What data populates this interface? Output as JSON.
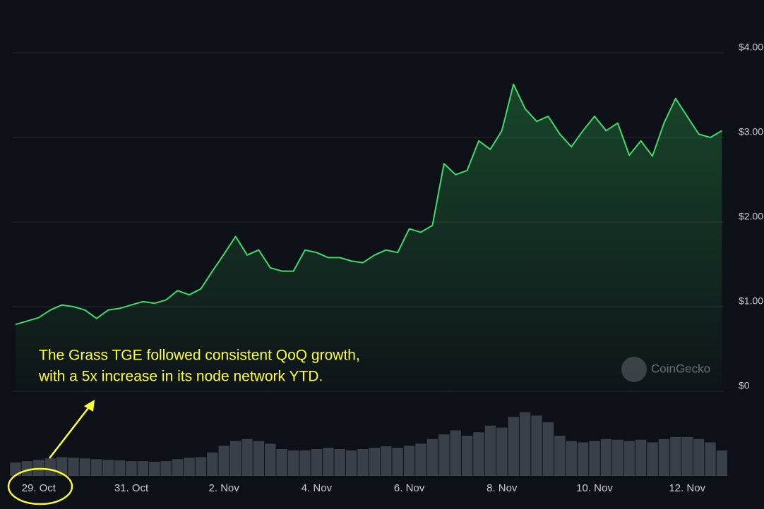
{
  "chart_data": {
    "type": "line",
    "categories": [
      null,
      null,
      "29. Oct",
      null,
      null,
      null,
      null,
      null,
      null,
      null,
      "31. Oct",
      null,
      null,
      null,
      null,
      null,
      null,
      null,
      "2. Nov",
      null,
      null,
      null,
      null,
      null,
      null,
      null,
      "4. Nov",
      null,
      null,
      null,
      null,
      null,
      null,
      null,
      "6. Nov",
      null,
      null,
      null,
      null,
      null,
      null,
      null,
      "8. Nov",
      null,
      null,
      null,
      null,
      null,
      null,
      null,
      "10. Nov",
      null,
      null,
      null,
      null,
      null,
      null,
      null,
      "12. Nov",
      null,
      null,
      null
    ],
    "series": [
      {
        "color": "#3ddc6a",
        "values": [
          0.79,
          0.83,
          0.87,
          0.96,
          1.02,
          1.0,
          0.96,
          0.86,
          0.96,
          0.98,
          1.02,
          1.06,
          1.04,
          1.08,
          1.19,
          1.14,
          1.21,
          1.42,
          1.62,
          1.83,
          1.61,
          1.67,
          1.46,
          1.42,
          1.42,
          1.67,
          1.64,
          1.58,
          1.58,
          1.54,
          1.52,
          1.61,
          1.67,
          1.64,
          1.92,
          1.88,
          1.96,
          2.69,
          2.56,
          2.61,
          2.96,
          2.86,
          3.08,
          3.63,
          3.34,
          3.19,
          3.25,
          3.04,
          2.89,
          3.08,
          3.25,
          3.08,
          3.17,
          2.79,
          2.96,
          2.78,
          3.17,
          3.46,
          3.25,
          3.04,
          3.0,
          3.08
        ]
      }
    ],
    "volume": {
      "color": "#3a4048",
      "values": [
        20,
        22,
        24,
        26,
        28,
        27,
        26,
        25,
        24,
        23,
        22,
        22,
        21,
        22,
        25,
        27,
        28,
        35,
        45,
        52,
        55,
        52,
        48,
        40,
        38,
        38,
        40,
        42,
        40,
        38,
        40,
        42,
        44,
        42,
        45,
        48,
        55,
        62,
        68,
        60,
        65,
        75,
        72,
        88,
        95,
        90,
        80,
        60,
        52,
        50,
        52,
        55,
        54,
        52,
        54,
        50,
        55,
        58,
        58,
        55,
        50,
        38
      ]
    },
    "ylim": [
      0,
      4
    ],
    "yticks": [
      {
        "value": 0,
        "label": "$0"
      },
      {
        "value": 1,
        "label": "$1.00"
      },
      {
        "value": 2,
        "label": "$2.00"
      },
      {
        "value": 3,
        "label": "$3.00"
      },
      {
        "value": 4,
        "label": "$4.00"
      }
    ],
    "grid": true,
    "annotation": [
      "The Grass TGE followed consistent QoQ growth,",
      "with a 5x increase in its node network YTD."
    ],
    "watermark": "CoinGecko"
  }
}
